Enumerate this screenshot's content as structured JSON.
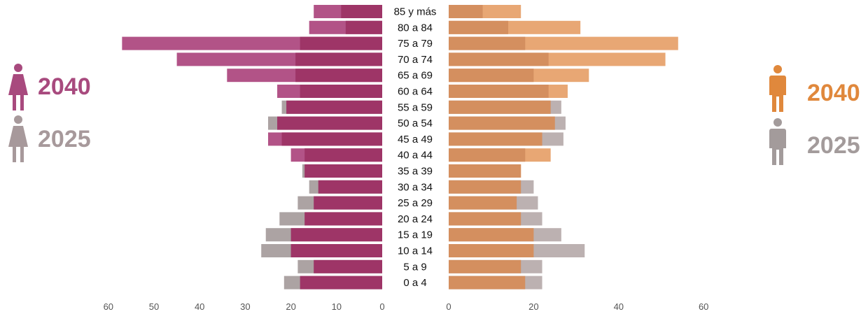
{
  "chart_data": {
    "type": "bar",
    "categories": [
      "85 y más",
      "80 a 84",
      "75 a 79",
      "70 a 74",
      "65 a 69",
      "60 a 64",
      "55 a 59",
      "50 a 54",
      "45 a 49",
      "40 a 44",
      "35 a 39",
      "30 a 34",
      "25 a 29",
      "20 a 24",
      "15 a 19",
      "10 a 14",
      "5 a 9",
      "0 a 4"
    ],
    "female": {
      "year_2040": [
        15,
        16,
        57,
        45,
        34,
        23,
        21,
        23,
        25,
        20,
        17,
        14,
        15,
        17,
        20,
        20,
        15,
        18
      ],
      "year_2025": [
        9,
        8,
        18,
        19,
        19,
        18,
        22,
        25,
        22,
        17,
        17.5,
        16,
        18.5,
        22.5,
        25.5,
        26.5,
        18.5,
        21.5
      ],
      "xlim": [
        0,
        60
      ],
      "ticks": [
        "60",
        "50",
        "40",
        "30",
        "20",
        "10",
        "0"
      ]
    },
    "male": {
      "year_2040": [
        17,
        31,
        54,
        51,
        33,
        28,
        24,
        25,
        22,
        24,
        17,
        17,
        16,
        17,
        20,
        20,
        17,
        18
      ],
      "year_2025": [
        8,
        14,
        18,
        23.5,
        20,
        23.5,
        26.5,
        27.5,
        27,
        18,
        17,
        20,
        21,
        22,
        26.5,
        32,
        22,
        22
      ],
      "xlim": [
        0,
        60
      ],
      "ticks": [
        "0",
        "20",
        "40",
        "60"
      ]
    }
  },
  "legend": {
    "female_2040": "2040",
    "female_2025": "2025",
    "male_2040": "2040",
    "male_2025": "2025"
  },
  "colors": {
    "female_2040": "#B25387",
    "female_2025_overlap": "#9E3567",
    "female_2025": "#ACA3A3",
    "male_2040": "#E8A774",
    "male_2025_overlap": "#D48F5F",
    "male_2025": "#BCB1B1",
    "female_legend_2040": "#A84A7E",
    "female_legend_2025": "#A7999B",
    "male_legend_2040": "#E0883C",
    "male_legend_2025": "#A39B9B"
  }
}
